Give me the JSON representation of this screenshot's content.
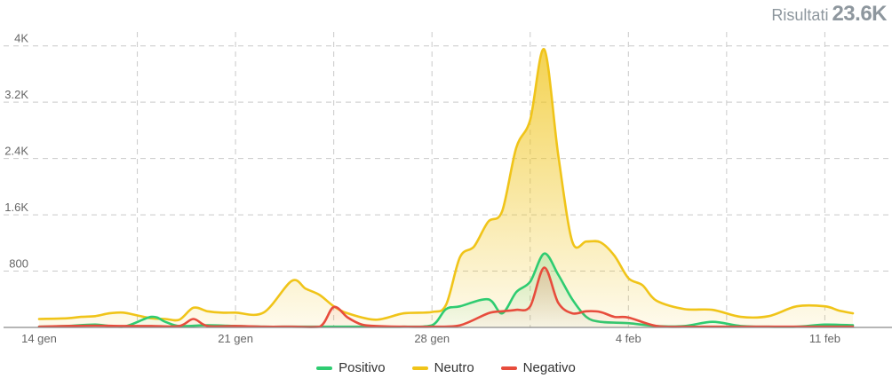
{
  "header": {
    "results_label": "Risultati",
    "results_value": "23.6K"
  },
  "chart_data": {
    "type": "area",
    "title": "",
    "xlabel": "",
    "ylabel": "",
    "x_ticks": [
      {
        "label": "14 gen",
        "day": 0
      },
      {
        "label": "21 gen",
        "day": 7
      },
      {
        "label": "28 gen",
        "day": 14
      },
      {
        "label": "4 feb",
        "day": 21
      },
      {
        "label": "11 feb",
        "day": 28
      }
    ],
    "y_ticks": [
      {
        "label": "800",
        "value": 800
      },
      {
        "label": "1.6K",
        "value": 1600
      },
      {
        "label": "2.4K",
        "value": 2400
      },
      {
        "label": "3.2K",
        "value": 3200
      },
      {
        "label": "4K",
        "value": 4000
      }
    ],
    "ylim": [
      0,
      4400
    ],
    "xlim": [
      0,
      29
    ],
    "grid": true,
    "legend_position": "bottom",
    "series": [
      {
        "name": "Neutro",
        "color": "#f0c419",
        "fill": true,
        "points": [
          [
            0,
            120
          ],
          [
            1,
            130
          ],
          [
            1.5,
            150
          ],
          [
            2,
            160
          ],
          [
            2.5,
            200
          ],
          [
            3,
            210
          ],
          [
            3.5,
            170
          ],
          [
            4,
            130
          ],
          [
            4.5,
            120
          ],
          [
            5,
            110
          ],
          [
            5.5,
            280
          ],
          [
            6,
            230
          ],
          [
            6.5,
            210
          ],
          [
            7,
            210
          ],
          [
            8,
            210
          ],
          [
            9,
            660
          ],
          [
            9.5,
            550
          ],
          [
            10,
            460
          ],
          [
            10.5,
            300
          ],
          [
            11,
            200
          ],
          [
            12,
            110
          ],
          [
            13,
            200
          ],
          [
            14,
            220
          ],
          [
            14.5,
            320
          ],
          [
            15,
            1000
          ],
          [
            15.5,
            1150
          ],
          [
            16,
            1500
          ],
          [
            16.5,
            1650
          ],
          [
            17,
            2550
          ],
          [
            17.5,
            2950
          ],
          [
            18,
            3950
          ],
          [
            18.5,
            2450
          ],
          [
            19,
            1220
          ],
          [
            19.5,
            1220
          ],
          [
            20,
            1210
          ],
          [
            20.5,
            1020
          ],
          [
            21,
            700
          ],
          [
            21.5,
            600
          ],
          [
            22,
            380
          ],
          [
            23,
            260
          ],
          [
            24,
            250
          ],
          [
            25,
            150
          ],
          [
            26,
            160
          ],
          [
            27,
            300
          ],
          [
            28,
            300
          ],
          [
            28.5,
            240
          ],
          [
            29,
            200
          ]
        ]
      },
      {
        "name": "Positivo",
        "color": "#2ecc71",
        "fill": false,
        "points": [
          [
            0,
            10
          ],
          [
            1,
            20
          ],
          [
            2,
            40
          ],
          [
            3,
            10
          ],
          [
            4,
            150
          ],
          [
            4.5,
            80
          ],
          [
            5,
            20
          ],
          [
            6,
            30
          ],
          [
            7,
            20
          ],
          [
            8,
            10
          ],
          [
            9,
            10
          ],
          [
            10,
            10
          ],
          [
            11,
            10
          ],
          [
            12,
            10
          ],
          [
            13,
            10
          ],
          [
            14,
            30
          ],
          [
            14.5,
            260
          ],
          [
            15,
            300
          ],
          [
            16,
            400
          ],
          [
            16.5,
            200
          ],
          [
            17,
            500
          ],
          [
            17.5,
            650
          ],
          [
            18,
            1050
          ],
          [
            18.5,
            750
          ],
          [
            19,
            400
          ],
          [
            19.5,
            150
          ],
          [
            20,
            80
          ],
          [
            21,
            60
          ],
          [
            22,
            20
          ],
          [
            23,
            20
          ],
          [
            24,
            80
          ],
          [
            25,
            20
          ],
          [
            26,
            10
          ],
          [
            27,
            10
          ],
          [
            28,
            40
          ],
          [
            29,
            30
          ]
        ]
      },
      {
        "name": "Negativo",
        "color": "#e74c3c",
        "fill": false,
        "points": [
          [
            0,
            10
          ],
          [
            1,
            20
          ],
          [
            2,
            25
          ],
          [
            3,
            20
          ],
          [
            4,
            20
          ],
          [
            5,
            20
          ],
          [
            5.5,
            120
          ],
          [
            6,
            20
          ],
          [
            7,
            20
          ],
          [
            8,
            10
          ],
          [
            9,
            10
          ],
          [
            10,
            10
          ],
          [
            10.5,
            290
          ],
          [
            11,
            140
          ],
          [
            11.5,
            40
          ],
          [
            12,
            20
          ],
          [
            13,
            10
          ],
          [
            14,
            10
          ],
          [
            15,
            30
          ],
          [
            16,
            200
          ],
          [
            16.5,
            230
          ],
          [
            17,
            250
          ],
          [
            17.5,
            300
          ],
          [
            18,
            850
          ],
          [
            18.5,
            350
          ],
          [
            19,
            200
          ],
          [
            19.5,
            230
          ],
          [
            20,
            220
          ],
          [
            20.5,
            150
          ],
          [
            21,
            140
          ],
          [
            22,
            20
          ],
          [
            23,
            10
          ],
          [
            24,
            10
          ],
          [
            25,
            10
          ],
          [
            26,
            10
          ],
          [
            27,
            10
          ],
          [
            28,
            10
          ],
          [
            29,
            10
          ]
        ]
      }
    ]
  },
  "legend": [
    {
      "name": "Positivo",
      "color": "#2ecc71"
    },
    {
      "name": "Neutro",
      "color": "#f0c419"
    },
    {
      "name": "Negativo",
      "color": "#e74c3c"
    }
  ]
}
